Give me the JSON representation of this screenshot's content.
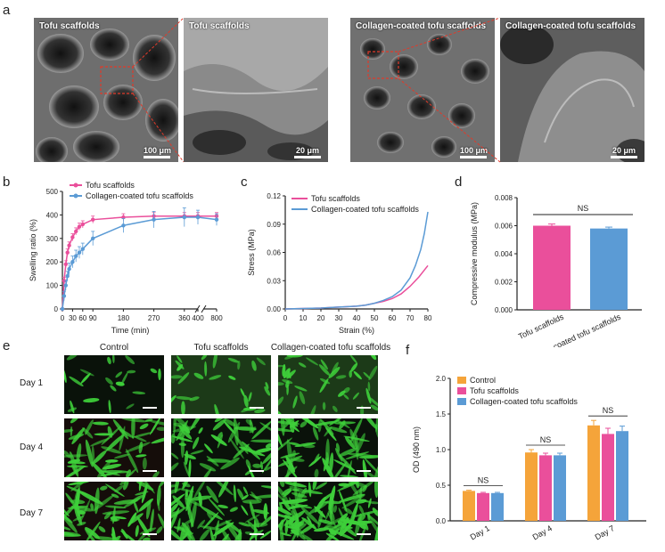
{
  "panels": {
    "a": "a",
    "b": "b",
    "c": "c",
    "d": "d",
    "e": "e",
    "f": "f"
  },
  "panel_a": {
    "images": [
      {
        "title": "Tofu scaffolds",
        "scale": "100 μm"
      },
      {
        "title": "Tofu scaffolds",
        "scale": "20 μm"
      },
      {
        "title": "Collagen-coated tofu scaffolds",
        "scale": "100 μm"
      },
      {
        "title": "Collagen-coated tofu scaffolds",
        "scale": "20 μm"
      }
    ]
  },
  "panel_e": {
    "columns": [
      "Control",
      "Tofu scaffolds",
      "Collagen-coated  tofu scaffolds"
    ],
    "rows": [
      "Day 1",
      "Day 4",
      "Day 7"
    ]
  },
  "colors": {
    "pink": "#ea4f9b",
    "blue": "#5b9bd5",
    "orange": "#f5a43a",
    "axis": "#222222",
    "green": "#3ecf3a"
  },
  "chart_data": [
    {
      "type": "line",
      "panel": "b",
      "xlabel": "Time (min)",
      "ylabel": "Swelling ratio (%)",
      "xticks": [
        "0",
        "30",
        "60",
        "90",
        "180",
        "270",
        "360",
        "400",
        "800"
      ],
      "yticks": [
        "0",
        "100",
        "200",
        "300",
        "400",
        "500"
      ],
      "ylim": [
        0,
        500
      ],
      "legend_position": "top-left",
      "series": [
        {
          "name": "Tofu scaffolds",
          "color": "#ea4f9b",
          "x": [
            0,
            5,
            10,
            15,
            20,
            30,
            40,
            50,
            60,
            90,
            180,
            270,
            360,
            400,
            800
          ],
          "y": [
            0,
            120,
            190,
            240,
            270,
            305,
            330,
            350,
            360,
            380,
            390,
            395,
            395,
            395,
            395
          ],
          "err": [
            0,
            15,
            15,
            15,
            15,
            15,
            15,
            15,
            15,
            15,
            15,
            15,
            15,
            15,
            15
          ]
        },
        {
          "name": "Collagen-coated tofu scaffolds",
          "color": "#5b9bd5",
          "x": [
            0,
            5,
            10,
            15,
            20,
            30,
            40,
            50,
            60,
            90,
            180,
            270,
            360,
            400,
            800
          ],
          "y": [
            0,
            55,
            100,
            140,
            170,
            200,
            225,
            240,
            255,
            300,
            355,
            380,
            390,
            390,
            380
          ],
          "err": [
            0,
            20,
            20,
            20,
            25,
            25,
            25,
            25,
            25,
            30,
            30,
            35,
            40,
            30,
            25
          ]
        }
      ]
    },
    {
      "type": "line",
      "panel": "c",
      "xlabel": "Strain (%)",
      "ylabel": "Stress (MPa)",
      "xlim": [
        0,
        80
      ],
      "ylim": [
        0,
        0.12
      ],
      "xticks": [
        "0",
        "10",
        "20",
        "30",
        "40",
        "50",
        "60",
        "70",
        "80"
      ],
      "yticks": [
        "0.00",
        "0.03",
        "0.06",
        "0.09",
        "0.12"
      ],
      "legend_position": "top-left",
      "series": [
        {
          "name": "Tofu scaffolds",
          "color": "#ea4f9b",
          "x": [
            0,
            10,
            20,
            30,
            40,
            45,
            50,
            55,
            60,
            65,
            70,
            75,
            80
          ],
          "y": [
            0,
            0.0005,
            0.001,
            0.002,
            0.003,
            0.004,
            0.006,
            0.008,
            0.011,
            0.016,
            0.024,
            0.034,
            0.046
          ]
        },
        {
          "name": "Collagen-coated tofu scaffolds",
          "color": "#5b9bd5",
          "x": [
            0,
            10,
            20,
            30,
            40,
            45,
            50,
            55,
            60,
            65,
            70,
            73,
            76,
            78,
            80
          ],
          "y": [
            0,
            0.0005,
            0.001,
            0.002,
            0.003,
            0.004,
            0.006,
            0.009,
            0.013,
            0.02,
            0.033,
            0.046,
            0.063,
            0.08,
            0.103
          ]
        }
      ]
    },
    {
      "type": "bar",
      "panel": "d",
      "ylabel": "Compressive modulus (MPa)",
      "categories": [
        "Tofu scaffolds",
        "Collagen-coated  tofu scaffolds"
      ],
      "values": [
        0.006,
        0.0058
      ],
      "err": [
        0.00012,
        0.0001
      ],
      "colors": [
        "#ea4f9b",
        "#5b9bd5"
      ],
      "ylim": [
        0,
        0.008
      ],
      "yticks": [
        "0.000",
        "0.002",
        "0.004",
        "0.006",
        "0.008"
      ],
      "annotation": "NS"
    },
    {
      "type": "bar",
      "panel": "f",
      "ylabel": "OD (490 nm)",
      "categories": [
        "Day 1",
        "Day 4",
        "Day 7"
      ],
      "ylim": [
        0,
        2.0
      ],
      "yticks": [
        "0.0",
        "0.5",
        "1.0",
        "1.5",
        "2.0"
      ],
      "legend_position": "top-left",
      "annotation": "NS",
      "series": [
        {
          "name": "Control",
          "color": "#f5a43a",
          "values": [
            0.42,
            0.96,
            1.34
          ],
          "err": [
            0.01,
            0.04,
            0.07
          ]
        },
        {
          "name": "Tofu scaffolds",
          "color": "#ea4f9b",
          "values": [
            0.39,
            0.92,
            1.22
          ],
          "err": [
            0.01,
            0.03,
            0.08
          ]
        },
        {
          "name": "Collagen-coated tofu scaffolds",
          "color": "#5b9bd5",
          "values": [
            0.39,
            0.92,
            1.26
          ],
          "err": [
            0.01,
            0.03,
            0.07
          ]
        }
      ]
    }
  ]
}
